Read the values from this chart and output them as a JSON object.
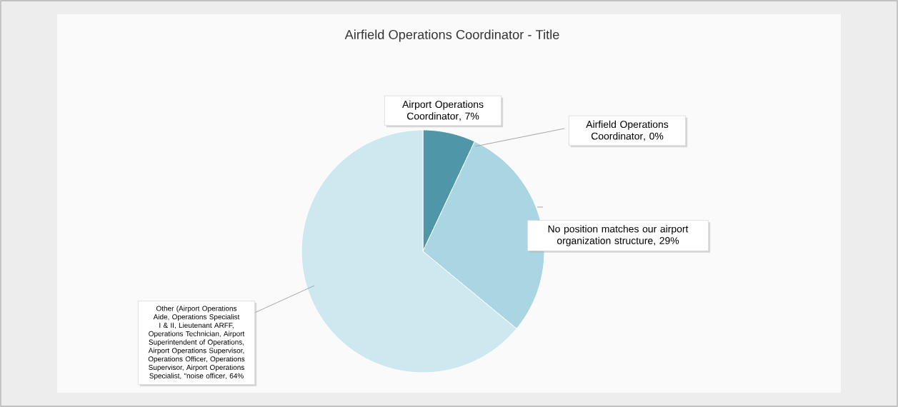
{
  "chart_data": {
    "type": "pie",
    "title": "Airfield Operations Coordinator - Title",
    "categories": [
      "Airport Operations Coordinator",
      "Airfield Operations Coordinator",
      "No position matches our airport organization structure",
      "Other (Airport Operations Aide, Operations Specialist I & II, Lieutenant ARFF, Operations Technician, Airport Superintendent of Operations, Airport Operations Supervisor, Operations Officer, Operations Supervisor, Airport Operations Specialist, \"noise officer"
    ],
    "values": [
      7,
      0,
      29,
      64
    ],
    "value_labels": [
      ", 7%",
      ", 0%",
      ", 29%",
      ", 64%"
    ],
    "colors": [
      "#4f97a8",
      "#6fb0c0",
      "#a9d6e2",
      "#cde8ef"
    ],
    "data_labels": true
  }
}
